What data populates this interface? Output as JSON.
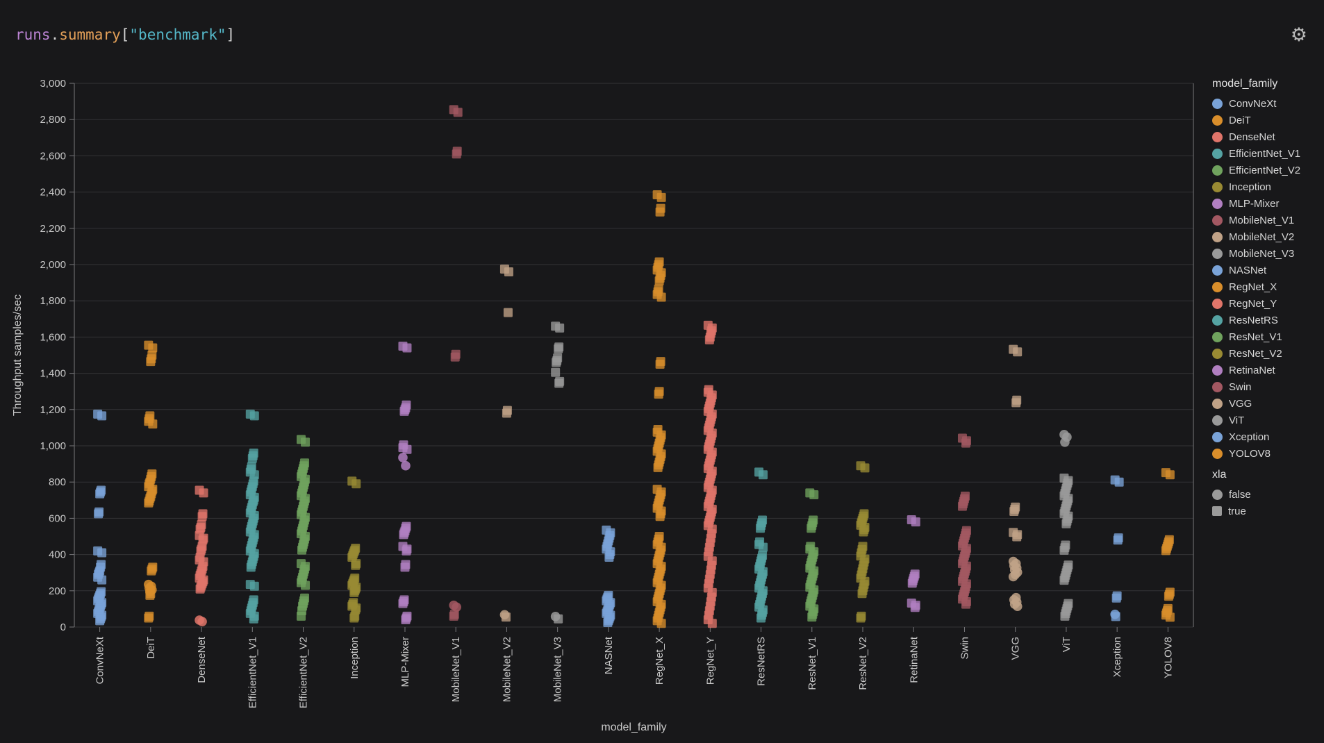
{
  "header": {
    "title_tokens": [
      {
        "text": "runs",
        "color": "#bd85d6"
      },
      {
        "text": ".",
        "color": "#d4d4d4"
      },
      {
        "text": "summary",
        "color": "#e5a159"
      },
      {
        "text": "[",
        "color": "#d4d4d4"
      },
      {
        "text": "\"benchmark\"",
        "color": "#55b8c9"
      },
      {
        "text": "]",
        "color": "#d4d4d4"
      }
    ]
  },
  "colors": {
    "background": "#18181a",
    "grid": "#333336",
    "axis": "#77777a",
    "tick_text": "#c9c9c9",
    "legend_text": "#d6d6d6",
    "xla_marker": "#9a9a9a"
  },
  "legend": {
    "model_family_header": "model_family",
    "xla_header": "xla",
    "xla_items": [
      {
        "label": "false",
        "shape": "circle"
      },
      {
        "label": "true",
        "shape": "square"
      }
    ]
  },
  "chart_data": {
    "type": "scatter",
    "title": "runs.summary[\"benchmark\"]",
    "xlabel": "model_family",
    "ylabel": "Throughput samples/sec",
    "ylim": [
      0,
      3000
    ],
    "ytick_step": 200,
    "grid": true,
    "legend_position": "right",
    "shape_encoding": {
      "field": "xla",
      "true": "square",
      "false": "circle"
    },
    "series": [
      {
        "name": "ConvNeXt",
        "color": "#7aa3d8",
        "squares": [
          1175,
          1165,
          755,
          745,
          735,
          635,
          625,
          420,
          410,
          345,
          330,
          310,
          300,
          290,
          275,
          260,
          195,
          185,
          175,
          165,
          155,
          145,
          135,
          125,
          115,
          105,
          95,
          85,
          75,
          65,
          55,
          45,
          35
        ],
        "circles": []
      },
      {
        "name": "DeiT",
        "color": "#d98e2b",
        "squares": [
          1555,
          1540,
          1500,
          1480,
          1465,
          1165,
          1150,
          1135,
          1120,
          845,
          830,
          815,
          800,
          790,
          775,
          760,
          750,
          735,
          720,
          710,
          695,
          685,
          330,
          320,
          310,
          185,
          175,
          60,
          50
        ],
        "circles": [
          235,
          225,
          215,
          205,
          195
        ]
      },
      {
        "name": "DenseNet",
        "color": "#e0756a",
        "squares": [
          755,
          740,
          625,
          610,
          565,
          550,
          540,
          505,
          490,
          480,
          445,
          430,
          420,
          385,
          370,
          360,
          335,
          320,
          310,
          295,
          285,
          270,
          260,
          250,
          240,
          230,
          220,
          210
        ],
        "circles": [
          38,
          30
        ]
      },
      {
        "name": "EfficientNet_V1",
        "color": "#55a3a3",
        "squares": [
          1175,
          1165,
          960,
          945,
          930,
          885,
          870,
          855,
          840,
          805,
          790,
          775,
          760,
          745,
          730,
          715,
          700,
          690,
          675,
          660,
          645,
          630,
          615,
          600,
          585,
          570,
          555,
          540,
          525,
          510,
          495,
          480,
          465,
          450,
          435,
          420,
          405,
          390,
          375,
          360,
          345,
          330,
          235,
          225,
          150,
          135,
          120,
          105,
          90,
          75,
          60,
          45
        ],
        "circles": []
      },
      {
        "name": "EfficientNet_V2",
        "color": "#70a35e",
        "squares": [
          1035,
          1020,
          905,
          890,
          875,
          860,
          845,
          830,
          815,
          800,
          785,
          770,
          755,
          740,
          725,
          710,
          695,
          680,
          665,
          650,
          635,
          620,
          605,
          590,
          575,
          560,
          545,
          530,
          515,
          500,
          485,
          470,
          455,
          440,
          425,
          350,
          335,
          320,
          305,
          290,
          275,
          260,
          245,
          230,
          160,
          145,
          130,
          115,
          90,
          60
        ],
        "circles": []
      },
      {
        "name": "Inception",
        "color": "#998a33",
        "squares": [
          805,
          790,
          435,
          425,
          415,
          405,
          395,
          385,
          350,
          340,
          270,
          260,
          250,
          240,
          230,
          220,
          210,
          200,
          190,
          135,
          125,
          115,
          105,
          95,
          60,
          50
        ],
        "circles": []
      },
      {
        "name": "MLP-Mixer",
        "color": "#b17fc1",
        "squares": [
          1550,
          1540,
          1225,
          1210,
          1200,
          1190,
          1005,
          990,
          980,
          555,
          545,
          530,
          520,
          510,
          445,
          430,
          420,
          345,
          330,
          150,
          140,
          130,
          60,
          50,
          40
        ],
        "circles": [
          935,
          890
        ]
      },
      {
        "name": "MobileNet_V1",
        "color": "#a35862",
        "squares": [
          2855,
          2840,
          2625,
          2610,
          1505,
          1490,
          70,
          60
        ],
        "circles": [
          120,
          110
        ]
      },
      {
        "name": "MobileNet_V2",
        "color": "#c0a287",
        "squares": [
          1975,
          1960,
          1735,
          1195,
          1180,
          55
        ],
        "circles": [
          68
        ]
      },
      {
        "name": "MobileNet_V3",
        "color": "#9a9a9a",
        "squares": [
          1660,
          1650,
          1545,
          1535,
          1485,
          1470,
          1460,
          1405,
          1355,
          1345,
          45
        ],
        "circles": [
          58
        ]
      },
      {
        "name": "NASNet",
        "color": "#7aa3d8",
        "squares": [
          535,
          520,
          505,
          490,
          475,
          460,
          445,
          430,
          415,
          400,
          385,
          175,
          165,
          155,
          145,
          135,
          125,
          115,
          105,
          95,
          85,
          75,
          65,
          55,
          45,
          35,
          25
        ],
        "circles": []
      },
      {
        "name": "RegNet_X",
        "color": "#d98e2b",
        "squares": [
          2385,
          2370,
          2310,
          2290,
          2015,
          2000,
          1985,
          1970,
          1955,
          1940,
          1925,
          1910,
          1865,
          1850,
          1835,
          1820,
          1465,
          1450,
          1300,
          1285,
          1090,
          1075,
          1060,
          1045,
          1030,
          1015,
          1000,
          985,
          970,
          955,
          940,
          925,
          910,
          895,
          880,
          760,
          745,
          730,
          715,
          700,
          685,
          670,
          655,
          640,
          625,
          610,
          500,
          485,
          470,
          455,
          440,
          425,
          410,
          395,
          380,
          365,
          350,
          335,
          320,
          305,
          290,
          275,
          260,
          245,
          230,
          215,
          200,
          185,
          170,
          155,
          140,
          125,
          110,
          95,
          80,
          65,
          50,
          35,
          20
        ],
        "circles": []
      },
      {
        "name": "RegNet_Y",
        "color": "#e0756a",
        "squares": [
          1665,
          1650,
          1635,
          1620,
          1600,
          1585,
          1310,
          1295,
          1280,
          1265,
          1250,
          1235,
          1220,
          1205,
          1190,
          1175,
          1160,
          1145,
          1130,
          1115,
          1100,
          1085,
          1070,
          1055,
          1040,
          1025,
          1010,
          995,
          980,
          965,
          950,
          935,
          920,
          905,
          890,
          875,
          860,
          845,
          830,
          815,
          800,
          785,
          770,
          755,
          740,
          725,
          710,
          695,
          680,
          665,
          650,
          635,
          620,
          605,
          590,
          575,
          560,
          540,
          515,
          490,
          465,
          440,
          415,
          390,
          365,
          340,
          315,
          290,
          265,
          240,
          215,
          190,
          165,
          140,
          115,
          90,
          65,
          40,
          20
        ],
        "circles": []
      },
      {
        "name": "ResNetRS",
        "color": "#55a3a3",
        "squares": [
          855,
          840,
          590,
          575,
          560,
          545,
          470,
          455,
          440,
          395,
          380,
          365,
          350,
          335,
          320,
          305,
          290,
          275,
          260,
          245,
          230,
          215,
          200,
          185,
          170,
          155,
          140,
          125,
          110,
          95,
          80,
          65,
          50
        ],
        "circles": []
      },
      {
        "name": "ResNet_V1",
        "color": "#70a35e",
        "squares": [
          740,
          730,
          590,
          575,
          560,
          545,
          445,
          430,
          415,
          400,
          385,
          370,
          355,
          340,
          325,
          310,
          295,
          280,
          265,
          250,
          235,
          220,
          205,
          190,
          175,
          160,
          145,
          130,
          115,
          100,
          85,
          70,
          55
        ],
        "circles": []
      },
      {
        "name": "ResNet_V2",
        "color": "#998a33",
        "squares": [
          890,
          878,
          625,
          612,
          600,
          588,
          575,
          562,
          550,
          538,
          525,
          445,
          428,
          410,
          392,
          375,
          358,
          340,
          322,
          305,
          288,
          270,
          252,
          235,
          218,
          200,
          185,
          60,
          50
        ],
        "circles": []
      },
      {
        "name": "RetinaNet",
        "color": "#b17fc1",
        "squares": [
          592,
          580,
          292,
          280,
          268,
          255,
          242,
          132,
          120,
          108
        ],
        "circles": []
      },
      {
        "name": "Swin",
        "color": "#a35862",
        "squares": [
          1042,
          1028,
          1015,
          722,
          708,
          694,
          680,
          666,
          532,
          518,
          504,
          490,
          476,
          462,
          448,
          434,
          420,
          406,
          392,
          378,
          364,
          350,
          336,
          322,
          308,
          294,
          280,
          266,
          252,
          238,
          224,
          210,
          196,
          182,
          168,
          154,
          140,
          126
        ],
        "circles": []
      },
      {
        "name": "VGG",
        "color": "#c0a287",
        "squares": [
          1532,
          1518,
          1252,
          1238,
          662,
          650,
          638,
          522,
          510,
          498
        ],
        "circles": [
          362,
          350,
          338,
          326,
          314,
          302,
          290,
          278,
          162,
          150,
          138,
          126,
          114
        ]
      },
      {
        "name": "ViT",
        "color": "#9a9a9a",
        "squares": [
          822,
          808,
          794,
          780,
          766,
          752,
          738,
          724,
          710,
          696,
          682,
          668,
          654,
          640,
          626,
          612,
          598,
          584,
          570,
          452,
          438,
          424,
          342,
          328,
          314,
          300,
          286,
          272,
          258,
          130,
          116,
          102,
          88,
          74,
          60
        ],
        "circles": [
          1062,
          1048,
          1020
        ]
      },
      {
        "name": "Xception",
        "color": "#7aa3d8",
        "squares": [
          812,
          800,
          492,
          480,
          172,
          160,
          58
        ],
        "circles": [
          70
        ]
      },
      {
        "name": "YOLOV8",
        "color": "#d98e2b",
        "squares": [
          852,
          840,
          482,
          470,
          458,
          446,
          434,
          422,
          192,
          180,
          170,
          102,
          90,
          78,
          66,
          54
        ],
        "circles": []
      }
    ]
  }
}
